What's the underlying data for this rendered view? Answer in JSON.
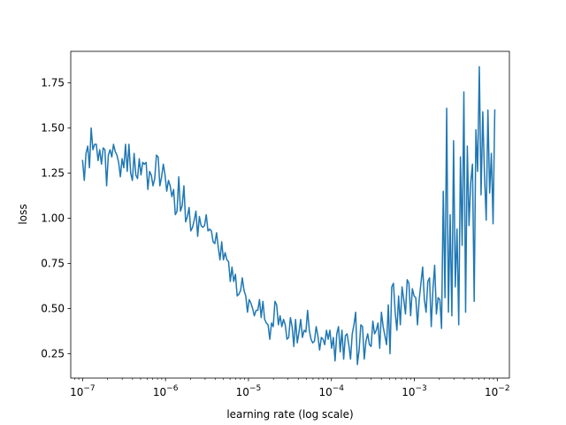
{
  "chart_data": {
    "type": "line",
    "title": "",
    "xlabel": "learning rate (log scale)",
    "ylabel": "loss",
    "xscale": "log",
    "xlim": [
      7.2e-08,
      0.014
    ],
    "ylim": [
      0.115,
      1.925
    ],
    "grid": false,
    "line_color": "#1f77b4",
    "x_ticks": [
      {
        "value": 1e-07,
        "label": "10−7"
      },
      {
        "value": 1e-06,
        "label": "10−6"
      },
      {
        "value": 1e-05,
        "label": "10−5"
      },
      {
        "value": 0.0001,
        "label": "10−4"
      },
      {
        "value": 0.001,
        "label": "10−3"
      },
      {
        "value": 0.01,
        "label": "10−2"
      }
    ],
    "y_ticks": [
      {
        "value": 0.25,
        "label": "0.25"
      },
      {
        "value": 0.5,
        "label": "0.50"
      },
      {
        "value": 0.75,
        "label": "0.75"
      },
      {
        "value": 1.0,
        "label": "1.00"
      },
      {
        "value": 1.25,
        "label": "1.25"
      },
      {
        "value": 1.5,
        "label": "1.50"
      },
      {
        "value": 1.75,
        "label": "1.75"
      }
    ],
    "series": [
      {
        "x_log10_range": [
          -7,
          -2.03
        ],
        "note_x": "points evenly spaced in log10(learning rate) across x_log10_range",
        "y": [
          1.32,
          1.21,
          1.36,
          1.4,
          1.28,
          1.5,
          1.38,
          1.41,
          1.41,
          1.32,
          1.38,
          1.3,
          1.39,
          1.38,
          1.18,
          1.35,
          1.38,
          1.34,
          1.41,
          1.37,
          1.35,
          1.31,
          1.23,
          1.33,
          1.28,
          1.41,
          1.26,
          1.41,
          1.25,
          1.21,
          1.36,
          1.24,
          1.22,
          1.33,
          1.24,
          1.31,
          1.3,
          1.31,
          1.16,
          1.26,
          1.24,
          1.18,
          1.22,
          1.35,
          1.34,
          1.18,
          1.23,
          1.3,
          1.24,
          1.15,
          1.21,
          1.18,
          1.12,
          1.16,
          1.02,
          1.04,
          1.23,
          1.04,
          1.07,
          1.18,
          0.98,
          1.01,
          1.06,
          0.93,
          0.95,
          0.99,
          1.04,
          0.9,
          1.01,
          0.96,
          0.95,
          0.96,
          1.02,
          0.93,
          0.94,
          0.93,
          0.87,
          0.86,
          0.92,
          0.84,
          0.77,
          0.87,
          0.77,
          0.81,
          0.77,
          0.76,
          0.65,
          0.73,
          0.65,
          0.69,
          0.57,
          0.58,
          0.6,
          0.67,
          0.6,
          0.57,
          0.48,
          0.55,
          0.53,
          0.5,
          0.46,
          0.49,
          0.49,
          0.55,
          0.45,
          0.54,
          0.44,
          0.42,
          0.41,
          0.33,
          0.42,
          0.4,
          0.54,
          0.52,
          0.41,
          0.46,
          0.4,
          0.44,
          0.41,
          0.33,
          0.34,
          0.45,
          0.4,
          0.29,
          0.44,
          0.31,
          0.37,
          0.44,
          0.34,
          0.38,
          0.37,
          0.49,
          0.38,
          0.33,
          0.31,
          0.32,
          0.4,
          0.35,
          0.27,
          0.34,
          0.33,
          0.3,
          0.38,
          0.33,
          0.38,
          0.28,
          0.34,
          0.21,
          0.36,
          0.4,
          0.26,
          0.38,
          0.22,
          0.35,
          0.36,
          0.3,
          0.22,
          0.36,
          0.41,
          0.48,
          0.19,
          0.27,
          0.41,
          0.4,
          0.22,
          0.32,
          0.36,
          0.3,
          0.29,
          0.43,
          0.36,
          0.38,
          0.42,
          0.28,
          0.48,
          0.4,
          0.35,
          0.3,
          0.52,
          0.25,
          0.62,
          0.64,
          0.48,
          0.38,
          0.57,
          0.41,
          0.62,
          0.55,
          0.47,
          0.66,
          0.64,
          0.46,
          0.61,
          0.57,
          0.56,
          0.41,
          0.55,
          0.64,
          0.73,
          0.55,
          0.48,
          0.65,
          0.67,
          0.4,
          0.61,
          0.74,
          0.47,
          0.56,
          0.55,
          0.39,
          1.15,
          0.56,
          1.61,
          0.48,
          1.02,
          0.46,
          1.43,
          0.62,
          0.94,
          0.41,
          1.34,
          0.85,
          1.7,
          0.48,
          1.4,
          0.96,
          1.2,
          1.3,
          0.54,
          1.49,
          1.26,
          1.84,
          1.13,
          1.59,
          1.24,
          0.99,
          1.6,
          1.14,
          1.36,
          0.97,
          1.6
        ]
      }
    ]
  }
}
